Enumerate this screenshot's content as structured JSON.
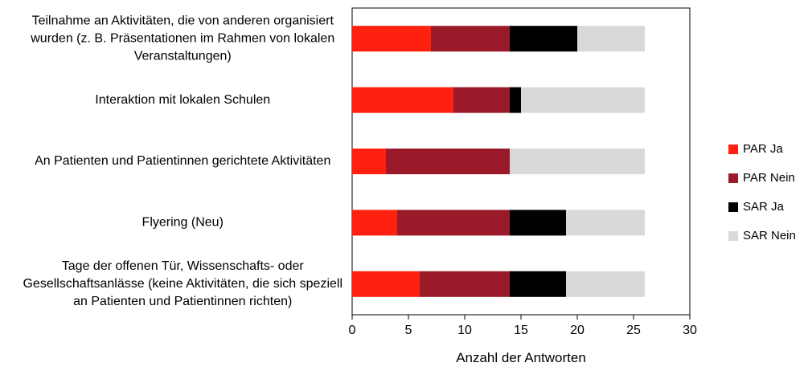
{
  "chart_data": {
    "type": "bar",
    "orientation": "horizontal",
    "stacked": true,
    "categories": [
      [
        "Teilnahme an Aktivitäten, die von anderen organisiert",
        "wurden (z. B. Präsentationen im Rahmen von lokalen",
        "Veranstaltungen)"
      ],
      [
        "Interaktion mit lokalen Schulen"
      ],
      [
        "An Patienten und Patientinnen gerichtete Aktivitäten"
      ],
      [
        "Flyering (Neu)"
      ],
      [
        "Tage der offenen Tür, Wissenschafts- oder",
        "Gesellschaftsanlässe (keine Aktivitäten, die sich speziell",
        "an Patienten und Patientinnen richten)"
      ]
    ],
    "series": [
      {
        "name": "PAR Ja",
        "color": "#ff2010",
        "values": [
          7,
          9,
          3,
          4,
          6
        ]
      },
      {
        "name": "PAR Nein",
        "color": "#9a1a2a",
        "values": [
          7,
          5,
          11,
          10,
          8
        ]
      },
      {
        "name": "SAR Ja",
        "color": "#000000",
        "values": [
          6,
          1,
          0,
          5,
          5
        ]
      },
      {
        "name": "SAR Nein",
        "color": "#d9d9d9",
        "values": [
          6,
          11,
          12,
          7,
          7
        ]
      }
    ],
    "xlabel": "Anzahl der Antworten",
    "ylabel": "",
    "xlim": [
      0,
      30
    ],
    "xticks": [
      0,
      5,
      10,
      15,
      20,
      25,
      30
    ],
    "grid": false,
    "legend": "right"
  }
}
